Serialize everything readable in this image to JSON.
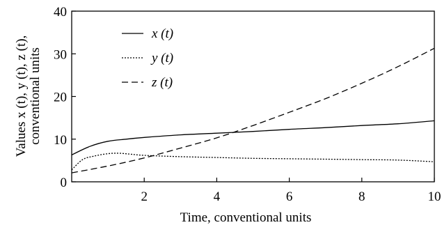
{
  "chart_data": {
    "type": "line",
    "xlabel": "Time, conventional units",
    "ylabel_line1": "Values x (t), y (t), z (t),",
    "ylabel_line2": "conventional units",
    "xlim": [
      0,
      10
    ],
    "ylim": [
      0,
      40
    ],
    "xticks": [
      2,
      4,
      6,
      8,
      10
    ],
    "yticks": [
      0,
      10,
      20,
      30,
      40
    ],
    "grid": false,
    "legend_position": "top-left",
    "series": [
      {
        "name": "x (t)",
        "style": "solid",
        "x": [
          0,
          0.5,
          1,
          1.5,
          2,
          3,
          4,
          5,
          6,
          7,
          8,
          9,
          10
        ],
        "y": [
          6.3,
          8.3,
          9.5,
          10.0,
          10.4,
          11.0,
          11.4,
          11.8,
          12.3,
          12.7,
          13.2,
          13.6,
          14.3
        ]
      },
      {
        "name": "y (t)",
        "style": "dotted",
        "x": [
          0,
          0.3,
          0.6,
          1,
          1.3,
          1.6,
          2,
          3,
          4,
          5,
          6,
          7,
          8,
          9,
          10
        ],
        "y": [
          2.8,
          5.2,
          6.0,
          6.6,
          6.7,
          6.5,
          6.2,
          5.9,
          5.7,
          5.5,
          5.4,
          5.3,
          5.2,
          5.1,
          4.7
        ]
      },
      {
        "name": "z (t)",
        "style": "dashed",
        "x": [
          0,
          1,
          2,
          3,
          4,
          5,
          6,
          7,
          8,
          9,
          10
        ],
        "y": [
          2.1,
          3.7,
          5.6,
          7.9,
          10.3,
          13.2,
          16.3,
          19.5,
          23.1,
          27.0,
          31.3
        ]
      }
    ]
  }
}
